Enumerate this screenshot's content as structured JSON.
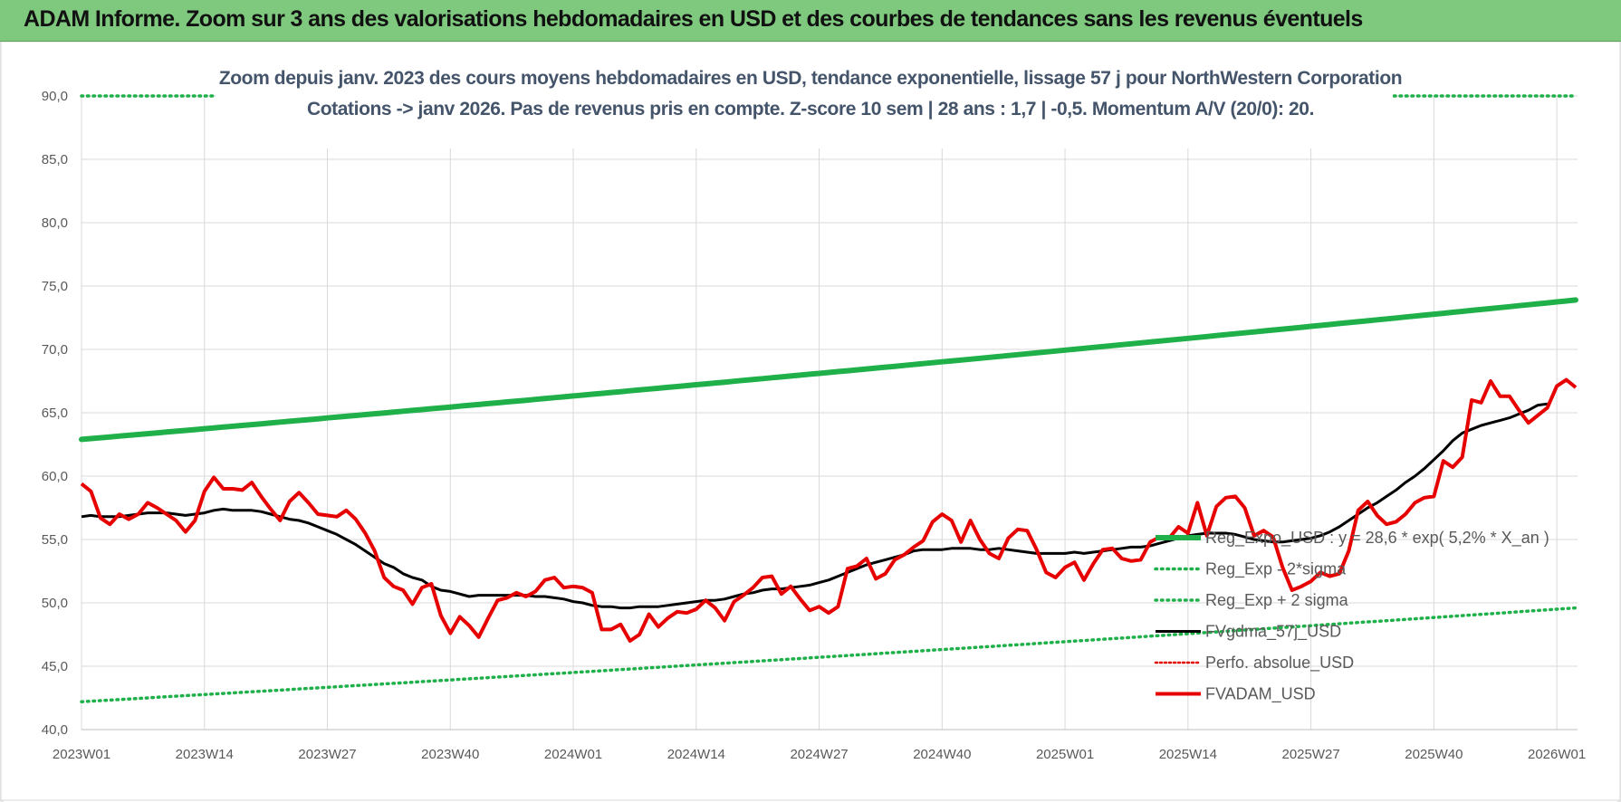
{
  "header": {
    "title": "ADAM Informe. Zoom sur 3 ans des valorisations hebdomadaires en USD et des courbes de tendances sans les revenus éventuels"
  },
  "chart_data": {
    "type": "line",
    "title_line1": "Zoom depuis janv. 2023 des cours moyens hebdomadaires en USD, tendance exponentielle, lissage 57 j pour NorthWestern Corporation",
    "title_line2": "Cotations -> janv 2026. Pas de revenus pris en compte. Z-score 10 sem | 28 ans : 1,7 | -0,5. Momentum A/V (20/0): 20.",
    "ylim": [
      40,
      90
    ],
    "yticks": [
      "40,0",
      "45,0",
      "50,0",
      "55,0",
      "60,0",
      "65,0",
      "70,0",
      "75,0",
      "80,0",
      "85,0",
      "90,0"
    ],
    "xticks": [
      "2023W01",
      "2023W14",
      "2023W27",
      "2023W40",
      "2024W01",
      "2024W14",
      "2024W27",
      "2024W40",
      "2025W01",
      "2025W14",
      "2025W27",
      "2025W40",
      "2026W01"
    ],
    "grid": true,
    "legend_position": "bottom-right",
    "colors": {
      "reg_expo": "#1fb04a",
      "reg_sigma": "#1fb04a",
      "fvgdma": "#000000",
      "perfo": "#e00000",
      "fvadam": "#e60000"
    },
    "series": [
      {
        "name": "Reg_Expo_USD : y = 28,6 * exp( 5,2% *  X_an )",
        "style": "solid-thick",
        "start": 62.9,
        "end": 73.9
      },
      {
        "name": "Reg_Exp - 2*sigma",
        "style": "dotted",
        "start": 42.2,
        "end": 49.6
      },
      {
        "name": "Reg_Exp + 2 sigma",
        "style": "dotted",
        "start": 90.0,
        "end": 90.0
      },
      {
        "name": "FVgdma_57j_USD",
        "style": "solid",
        "values": [
          56.8,
          56.9,
          56.8,
          56.8,
          56.8,
          56.9,
          57.0,
          57.1,
          57.1,
          57.1,
          57.0,
          56.9,
          57.0,
          57.1,
          57.3,
          57.4,
          57.3,
          57.3,
          57.3,
          57.2,
          57.0,
          56.8,
          56.6,
          56.5,
          56.3,
          56.0,
          55.7,
          55.4,
          55.0,
          54.6,
          54.1,
          53.6,
          53.1,
          52.8,
          52.3,
          52.0,
          51.8,
          51.3,
          51.0,
          50.9,
          50.7,
          50.5,
          50.6,
          50.6,
          50.6,
          50.6,
          50.6,
          50.6,
          50.5,
          50.5,
          50.4,
          50.3,
          50.1,
          50.0,
          49.8,
          49.7,
          49.7,
          49.6,
          49.6,
          49.7,
          49.7,
          49.7,
          49.8,
          49.9,
          50.0,
          50.1,
          50.2,
          50.2,
          50.3,
          50.5,
          50.7,
          50.8,
          51.0,
          51.1,
          51.1,
          51.2,
          51.3,
          51.4,
          51.6,
          51.8,
          52.1,
          52.4,
          52.7,
          53.0,
          53.2,
          53.4,
          53.6,
          53.8,
          54.1,
          54.2,
          54.2,
          54.2,
          54.3,
          54.3,
          54.3,
          54.2,
          54.2,
          54.3,
          54.2,
          54.1,
          54.0,
          53.9,
          53.9,
          53.9,
          53.9,
          54.0,
          53.9,
          54.0,
          54.1,
          54.2,
          54.3,
          54.4,
          54.4,
          54.5,
          54.7,
          54.9,
          55.1,
          55.3,
          55.4,
          55.5,
          55.5,
          55.5,
          55.4,
          55.2,
          55.0,
          54.9,
          54.8,
          54.8,
          54.9,
          55.0,
          55.1,
          55.3,
          55.6,
          56.0,
          56.5,
          57.0,
          57.5,
          57.9,
          58.4,
          58.9,
          59.5,
          60.0,
          60.6,
          61.3,
          62.0,
          62.8,
          63.4,
          63.7,
          64.0,
          64.2,
          64.4,
          64.6,
          64.9,
          65.2,
          65.6,
          65.7
        ]
      },
      {
        "name": "Perfo. absolue_USD",
        "style": "dotted"
      },
      {
        "name": "FVADAM_USD",
        "style": "solid",
        "values": [
          59.4,
          58.8,
          56.7,
          56.2,
          57.0,
          56.6,
          57.0,
          57.9,
          57.5,
          57.0,
          56.5,
          55.6,
          56.5,
          58.8,
          59.9,
          59.0,
          59.0,
          58.9,
          59.5,
          58.4,
          57.4,
          56.5,
          58.0,
          58.7,
          57.9,
          57.0,
          56.9,
          56.8,
          57.3,
          56.6,
          55.5,
          54.1,
          52.0,
          51.3,
          51.0,
          49.9,
          51.2,
          51.5,
          49.0,
          47.6,
          48.9,
          48.2,
          47.3,
          48.8,
          50.2,
          50.4,
          50.8,
          50.5,
          50.9,
          51.8,
          52.0,
          51.2,
          51.3,
          51.2,
          50.8,
          47.9,
          47.9,
          48.3,
          47.0,
          47.5,
          49.1,
          48.1,
          48.8,
          49.3,
          49.2,
          49.5,
          50.2,
          49.6,
          48.6,
          50.1,
          50.6,
          51.2,
          52.0,
          52.1,
          50.7,
          51.3,
          50.3,
          49.4,
          49.7,
          49.2,
          49.7,
          52.7,
          52.9,
          53.5,
          51.9,
          52.3,
          53.4,
          53.8,
          54.4,
          54.9,
          56.4,
          57.0,
          56.5,
          54.8,
          56.5,
          55.0,
          53.9,
          53.5,
          55.1,
          55.8,
          55.7,
          54.2,
          52.4,
          52.0,
          52.8,
          53.2,
          51.8,
          53.1,
          54.2,
          54.3,
          53.5,
          53.3,
          53.4,
          54.8,
          55.2,
          55.1,
          56.0,
          55.5,
          57.9,
          55.3,
          57.6,
          58.3,
          58.4,
          57.5,
          55.3,
          55.7,
          55.2,
          52.8,
          51.0,
          51.3,
          51.7,
          52.4,
          52.1,
          52.3,
          54.1,
          57.3,
          58.0,
          56.9,
          56.2,
          56.4,
          57.0,
          57.9,
          58.3,
          58.4,
          61.2,
          60.7,
          61.5,
          66.0,
          65.8,
          67.5,
          66.3,
          66.3,
          65.2,
          64.2,
          64.8,
          65.4,
          67.1,
          67.6,
          67.0
        ]
      }
    ]
  }
}
